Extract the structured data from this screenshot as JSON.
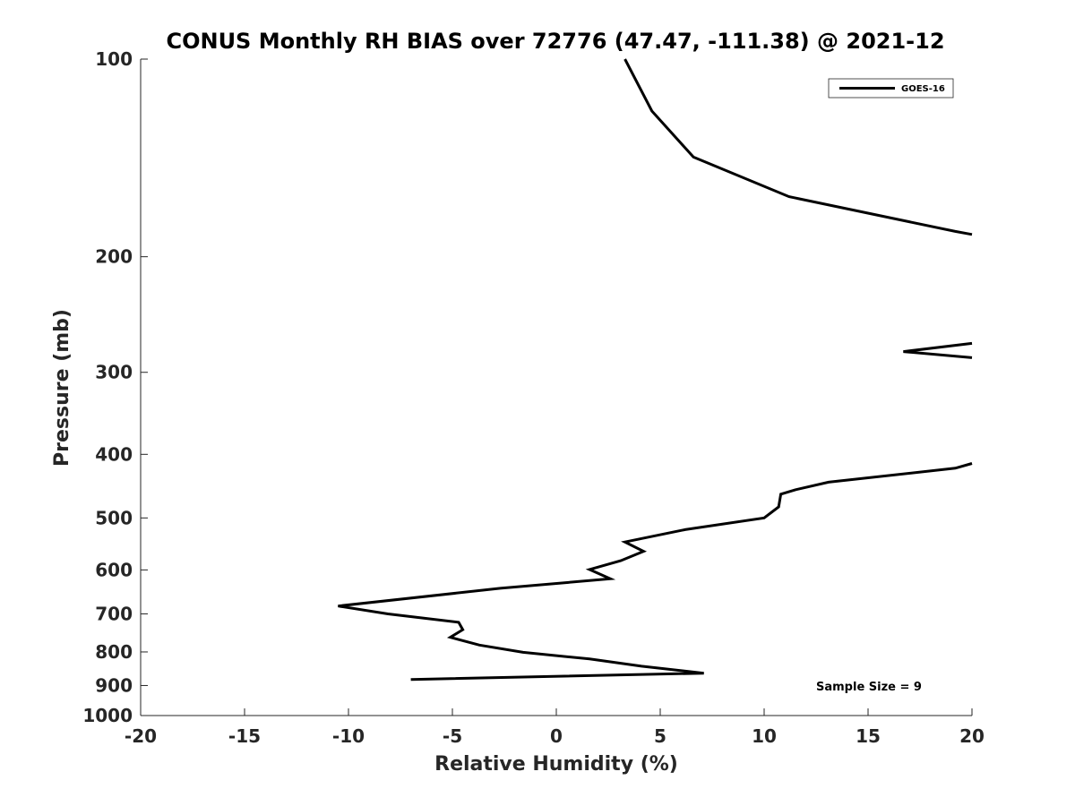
{
  "chart_data": {
    "type": "line",
    "title": "CONUS Monthly RH BIAS over 72776 (47.47, -111.38) @ 2021-12",
    "xlabel": "Relative Humidity (%)",
    "ylabel": "Pressure (mb)",
    "xlim": [
      -20,
      20
    ],
    "ylim": [
      1000,
      100
    ],
    "y_scale": "log",
    "y_reversed": true,
    "grid": false,
    "legend_position": "top-right",
    "x_ticks": [
      -20,
      -15,
      -10,
      -5,
      0,
      5,
      10,
      15,
      20
    ],
    "x_tick_labels": [
      "-20",
      "-15",
      "-10",
      "-5",
      "0",
      "5",
      "10",
      "15",
      "20"
    ],
    "y_ticks": [
      100,
      200,
      300,
      400,
      500,
      600,
      700,
      800,
      900,
      1000
    ],
    "y_tick_labels": [
      "100",
      "200",
      "300",
      "400",
      "500",
      "600",
      "700",
      "800",
      "900",
      "1000"
    ],
    "annotation": "Sample Size = 9",
    "series": [
      {
        "name": "GOES-16",
        "color": "#000000",
        "segments": [
          [
            {
              "x": 3.3,
              "y": 100
            },
            {
              "x": 4.6,
              "y": 120
            },
            {
              "x": 6.6,
              "y": 141
            },
            {
              "x": 11.2,
              "y": 162
            },
            {
              "x": 19.2,
              "y": 183
            },
            {
              "x": 20.0,
              "y": 185
            }
          ],
          [
            {
              "x": 20.0,
              "y": 271
            },
            {
              "x": 16.7,
              "y": 279
            },
            {
              "x": 20.0,
              "y": 285
            }
          ],
          [
            {
              "x": 20.0,
              "y": 413
            },
            {
              "x": 19.2,
              "y": 420
            },
            {
              "x": 13.1,
              "y": 441
            },
            {
              "x": 11.5,
              "y": 453
            },
            {
              "x": 10.8,
              "y": 460
            },
            {
              "x": 10.7,
              "y": 481
            },
            {
              "x": 10.0,
              "y": 500
            },
            {
              "x": 6.2,
              "y": 521
            },
            {
              "x": 3.3,
              "y": 544
            },
            {
              "x": 4.2,
              "y": 562
            },
            {
              "x": 3.1,
              "y": 581
            },
            {
              "x": 1.6,
              "y": 599
            },
            {
              "x": 2.6,
              "y": 619
            },
            {
              "x": -2.7,
              "y": 640
            },
            {
              "x": -10.5,
              "y": 681
            },
            {
              "x": -8.1,
              "y": 700
            },
            {
              "x": -4.7,
              "y": 721
            },
            {
              "x": -4.5,
              "y": 740
            },
            {
              "x": -5.1,
              "y": 760
            },
            {
              "x": -3.7,
              "y": 781
            },
            {
              "x": -1.6,
              "y": 801
            },
            {
              "x": 1.6,
              "y": 820
            },
            {
              "x": 4.1,
              "y": 841
            },
            {
              "x": 7.1,
              "y": 862
            },
            {
              "x": -7.0,
              "y": 881
            }
          ]
        ]
      }
    ]
  }
}
